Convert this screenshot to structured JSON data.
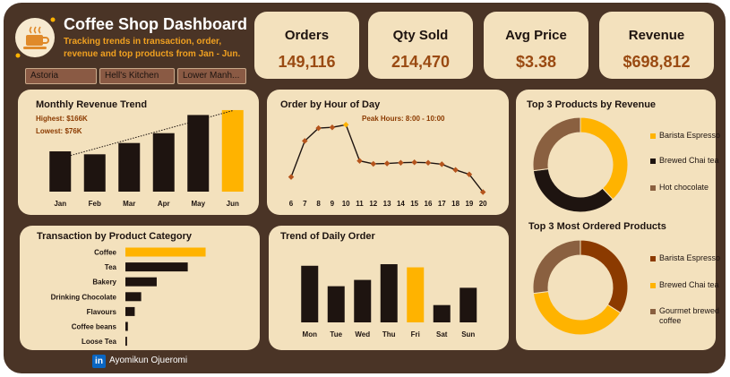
{
  "header": {
    "title": "Coffee Shop Dashboard",
    "subtitle_line1": "Tracking trends in transaction, order,",
    "subtitle_line2": "revenue and top products from Jan - Jun."
  },
  "slicers": [
    "Astoria",
    "Hell's Kitchen",
    "Lower Manh..."
  ],
  "kpis": [
    {
      "title": "Orders",
      "value": "149,116"
    },
    {
      "title": "Qty Sold",
      "value": "214,470"
    },
    {
      "title": "Avg Price",
      "value": "$3.38"
    },
    {
      "title": "Revenue",
      "value": "$698,812"
    }
  ],
  "footer": {
    "author": "Ayomikun Ojueromi",
    "linkedin_badge": "in"
  },
  "colors": {
    "dark": "#1e1410",
    "accent": "#ffb300",
    "brown": "#8a6040",
    "rust": "#8b3a00",
    "panel": "#f3e1bd",
    "frame": "#4a3426"
  },
  "chart_data": [
    {
      "id": "monthly",
      "type": "bar",
      "title": "Monthly Revenue Trend",
      "annotation1": "Highest: $166K",
      "annotation2": "Lowest: $76K",
      "categories": [
        "Jan",
        "Feb",
        "Mar",
        "Apr",
        "May",
        "Jun"
      ],
      "values": [
        82,
        76,
        99,
        119,
        156,
        166
      ],
      "highlight_index": 5,
      "trendline": true,
      "ylim": [
        0,
        175
      ]
    },
    {
      "id": "hourly",
      "type": "line",
      "title": "Order by Hour of Day",
      "annotation": "Peak Hours: 8:00 - 10:00",
      "x": [
        "6",
        "7",
        "8",
        "9",
        "10",
        "11",
        "12",
        "13",
        "14",
        "15",
        "16",
        "17",
        "18",
        "19",
        "20"
      ],
      "values": [
        4600,
        14200,
        17600,
        17800,
        18500,
        8900,
        8100,
        8200,
        8400,
        8500,
        8400,
        8000,
        6500,
        5300,
        600
      ],
      "ylim": [
        0,
        20000
      ]
    },
    {
      "id": "category",
      "type": "bar",
      "orientation": "horizontal",
      "title": "Transaction by Product Category",
      "categories": [
        "Coffee",
        "Tea",
        "Bakery",
        "Drinking Chocolate",
        "Flavours",
        "Coffee beans",
        "Loose Tea"
      ],
      "values": [
        58400,
        45400,
        22800,
        11500,
        6800,
        1800,
        1200
      ],
      "highlight_index": 0,
      "xlim": [
        0,
        60000
      ]
    },
    {
      "id": "daily",
      "type": "bar",
      "title": "Trend of Daily Order",
      "categories": [
        "Mon",
        "Tue",
        "Wed",
        "Thu",
        "Fri",
        "Sat",
        "Sun"
      ],
      "values": [
        21800,
        20500,
        20900,
        21900,
        21700,
        19300,
        20400
      ],
      "highlight_index": 4,
      "ylim": [
        18200,
        22300
      ]
    },
    {
      "id": "top-revenue",
      "type": "pie",
      "title": "Top 3 Products by Revenue",
      "labels": [
        "Barista Espresso",
        "Brewed Chai tea",
        "Hot chocolate"
      ],
      "values": [
        38,
        35,
        27
      ],
      "colors": [
        "#ffb300",
        "#1e1410",
        "#8a6040"
      ]
    },
    {
      "id": "top-ordered",
      "type": "pie",
      "title": "Top 3 Most Ordered Products",
      "labels": [
        "Barista Espresso",
        "Brewed Chai tea",
        "Gourmet brewed coffee"
      ],
      "values": [
        34,
        39,
        27
      ],
      "colors": [
        "#8b3a00",
        "#ffb300",
        "#8a6040"
      ]
    }
  ]
}
